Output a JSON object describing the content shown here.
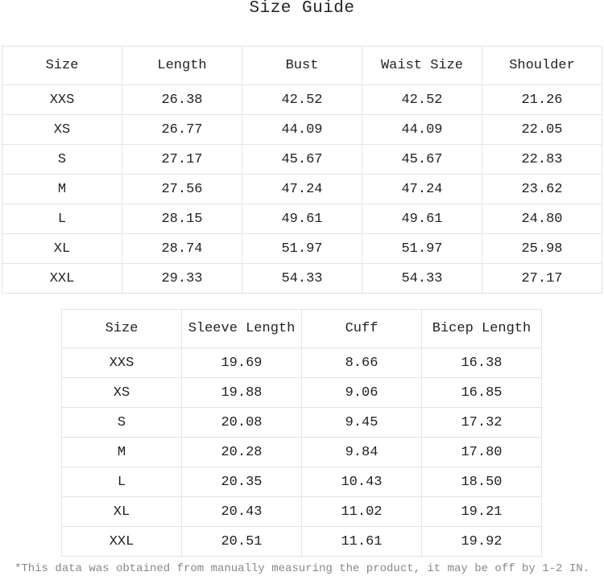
{
  "title": "Size Guide",
  "table1": {
    "header": [
      "Size",
      "Length",
      "Bust",
      "Waist Size",
      "Shoulder"
    ],
    "rows": [
      [
        "XXS",
        "26.38",
        "42.52",
        "42.52",
        "21.26"
      ],
      [
        "XS",
        "26.77",
        "44.09",
        "44.09",
        "22.05"
      ],
      [
        "S",
        "27.17",
        "45.67",
        "45.67",
        "22.83"
      ],
      [
        "M",
        "27.56",
        "47.24",
        "47.24",
        "23.62"
      ],
      [
        "L",
        "28.15",
        "49.61",
        "49.61",
        "24.80"
      ],
      [
        "XL",
        "28.74",
        "51.97",
        "51.97",
        "25.98"
      ],
      [
        "XXL",
        "29.33",
        "54.33",
        "54.33",
        "27.17"
      ]
    ]
  },
  "table2": {
    "header": [
      "Size",
      "Sleeve Length",
      "Cuff",
      "Bicep Length"
    ],
    "rows": [
      [
        "XXS",
        "19.69",
        "8.66",
        "16.38"
      ],
      [
        "XS",
        "19.88",
        "9.06",
        "16.85"
      ],
      [
        "S",
        "20.08",
        "9.45",
        "17.32"
      ],
      [
        "M",
        "20.28",
        "9.84",
        "17.80"
      ],
      [
        "L",
        "20.35",
        "10.43",
        "18.50"
      ],
      [
        "XL",
        "20.43",
        "11.02",
        "19.21"
      ],
      [
        "XXL",
        "20.51",
        "11.61",
        "19.92"
      ]
    ]
  },
  "note": "*This data was obtained from manually measuring the product, it may be off by 1-2 IN."
}
